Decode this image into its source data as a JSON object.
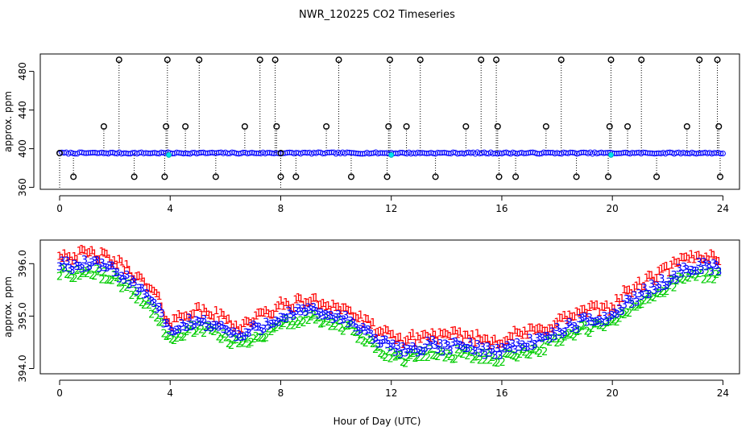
{
  "figure_title": "NWR_120225  CO2 Timeseries",
  "chart_data": [
    {
      "type": "scatter",
      "name": "raw-timeseries",
      "title": "NWR_120225  CO2 Timeseries",
      "xlabel": "",
      "ylabel": "approx. ppm",
      "xlim": [
        -0.7,
        24.6
      ],
      "ylim": [
        358,
        498
      ],
      "x_ticks": [
        0,
        4,
        8,
        12,
        16,
        20,
        24
      ],
      "x_tick_labels": [
        "0",
        "4",
        "8",
        "12",
        "16",
        "20",
        "24"
      ],
      "y_ticks": [
        360,
        400,
        440,
        480
      ],
      "y_tick_labels": [
        "360",
        "400",
        "440",
        "480"
      ],
      "baseline_ppm": 395.5,
      "flagged_values": {
        "high": 492,
        "mid": 423,
        "low": 371
      },
      "spikes_high_x": [
        2.15,
        3.9,
        5.05,
        7.25,
        7.8,
        10.1,
        11.95,
        13.05,
        15.25,
        15.8,
        18.15,
        19.95,
        21.05,
        23.15,
        23.8
      ],
      "spikes_mid_x": [
        1.6,
        3.85,
        4.55,
        6.7,
        7.85,
        9.65,
        11.9,
        12.55,
        14.7,
        15.85,
        17.6,
        19.9,
        20.55,
        22.7,
        23.85
      ],
      "spikes_low_x": [
        0.5,
        2.7,
        3.8,
        5.65,
        8.0,
        8.55,
        10.55,
        11.85,
        13.6,
        15.9,
        16.5,
        18.7,
        19.85,
        21.6,
        23.9
      ],
      "cyan_markers": [
        {
          "x": 3.95,
          "y": 393.5
        },
        {
          "x": 12.0,
          "y": 393.5
        },
        {
          "x": 19.95,
          "y": 393.5
        }
      ],
      "legend": "none",
      "grid": false
    },
    {
      "type": "scatter",
      "name": "hourly-means",
      "title": "",
      "xlabel": "Hour of Day (UTC)",
      "ylabel": "approx. ppm",
      "xlim": [
        -0.7,
        24.6
      ],
      "ylim": [
        393.9,
        396.45
      ],
      "x_ticks": [
        0,
        4,
        8,
        12,
        16,
        20,
        24
      ],
      "x_tick_labels": [
        "0",
        "4",
        "8",
        "12",
        "16",
        "20",
        "24"
      ],
      "y_ticks": [
        394.0,
        395.0,
        396.0
      ],
      "y_tick_labels": [
        "394.0",
        "395.0",
        "396.0"
      ],
      "series": [
        {
          "name": "1",
          "color": "#ff0000",
          "offset_ppm": 0.2
        },
        {
          "name": "2",
          "color": "#00cc00",
          "offset_ppm": -0.15
        },
        {
          "name": "3",
          "color": "#0000ff",
          "offset_ppm": 0.0
        }
      ],
      "profile_hours": [
        0,
        0.5,
        1,
        1.5,
        2,
        2.5,
        3,
        3.5,
        4,
        4.5,
        5,
        5.5,
        6,
        6.5,
        7,
        7.5,
        8,
        8.5,
        9,
        9.5,
        10,
        10.5,
        11,
        11.5,
        12,
        12.5,
        13,
        13.5,
        14,
        14.5,
        15,
        15.5,
        16,
        16.5,
        17,
        17.5,
        18,
        18.5,
        19,
        19.5,
        20,
        20.5,
        21,
        21.5,
        22,
        22.5,
        23,
        23.5,
        23.9
      ],
      "profile_ppm": [
        396.0,
        395.95,
        396.0,
        395.95,
        395.85,
        395.7,
        395.45,
        395.2,
        394.65,
        394.85,
        394.9,
        394.85,
        394.75,
        394.6,
        394.75,
        394.85,
        395.0,
        395.05,
        395.1,
        395.05,
        395.0,
        394.9,
        394.7,
        394.55,
        394.4,
        394.35,
        394.4,
        394.45,
        394.4,
        394.45,
        394.4,
        394.35,
        394.35,
        394.45,
        394.5,
        394.55,
        394.7,
        394.8,
        394.9,
        394.95,
        395.0,
        395.25,
        395.4,
        395.55,
        395.7,
        395.85,
        395.95,
        395.95,
        395.9
      ],
      "legend": "none",
      "grid": false
    }
  ]
}
